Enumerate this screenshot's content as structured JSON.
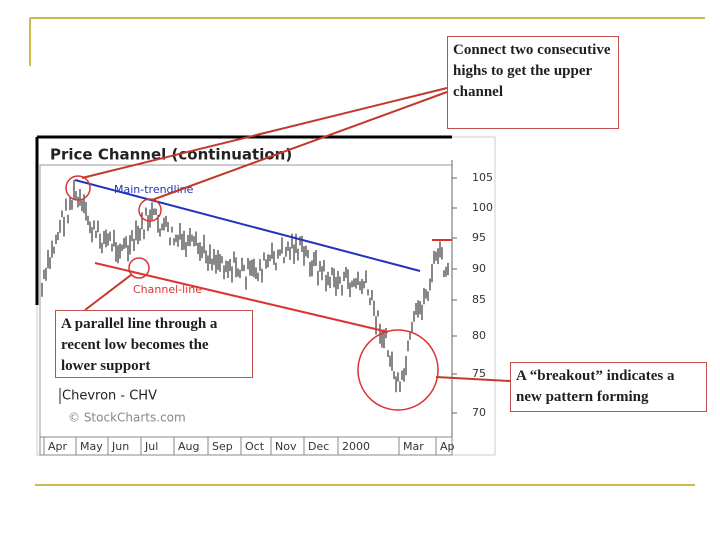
{
  "slide": {
    "callouts": [
      "Connect two consecutive highs to get the upper channel",
      "A parallel line through a recent low becomes the lower support",
      "A “breakout” indicates a new pattern forming"
    ],
    "chart_image": {
      "title": "Price Channel (continuation)",
      "trend_label": "Main-trendline",
      "channel_label": "Channel-line",
      "symbol": "Chevron - CHV",
      "source": "© StockCharts.com",
      "price_labels": [
        105,
        100,
        95,
        90,
        85,
        80,
        75,
        70
      ],
      "month_labels": [
        "Apr",
        "May",
        "Jun",
        "Jul",
        "Aug",
        "Sep",
        "Oct",
        "Nov",
        "Dec",
        "2000",
        "Mar",
        "Ap"
      ]
    }
  }
}
